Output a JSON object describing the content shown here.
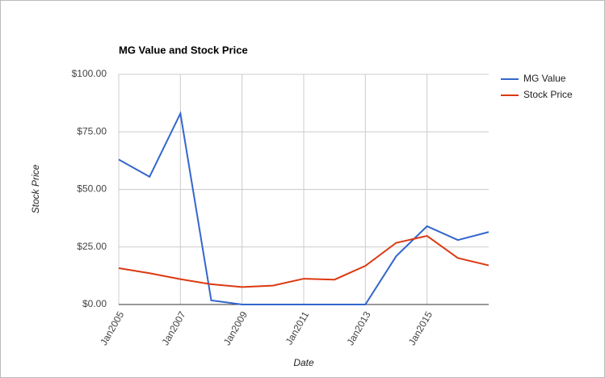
{
  "chart_data": {
    "type": "line",
    "title": "MG Value and Stock Price",
    "x_label": "Date",
    "y_label": "Stock Price",
    "x": [
      "2005-01",
      "2006-01",
      "2007-01",
      "2008-01",
      "2009-01",
      "2010-01",
      "2011-01",
      "2012-01",
      "2013-01",
      "2014-01",
      "2015-01",
      "2016-01",
      "2017-01"
    ],
    "series": [
      {
        "name": "MG Value",
        "color": "#3366cc",
        "values": [
          63,
          55.5,
          83,
          1.8,
          0,
          0,
          0,
          0,
          0,
          21,
          34,
          28,
          31.5
        ]
      },
      {
        "name": "Stock Price",
        "color": "#dc3912",
        "values": [
          15.8,
          13.6,
          11,
          8.8,
          7.6,
          8.2,
          11.2,
          10.8,
          16.8,
          26.8,
          29.8,
          20.2,
          17
        ]
      }
    ],
    "xlim": [
      "2005-01",
      "2017-01"
    ],
    "xticks": [
      {
        "value": "2005-01",
        "label": "Jan2005"
      },
      {
        "value": "2007-01",
        "label": "Jan2007"
      },
      {
        "value": "2009-01",
        "label": "Jan2009"
      },
      {
        "value": "2011-01",
        "label": "Jan2011"
      },
      {
        "value": "2013-01",
        "label": "Jan2013"
      },
      {
        "value": "2015-01",
        "label": "Jan2015"
      }
    ],
    "ylim": [
      0,
      100
    ],
    "yticks": [
      {
        "value": 0,
        "label": "$0.00"
      },
      {
        "value": 25,
        "label": "$25.00"
      },
      {
        "value": 50,
        "label": "$50.00"
      },
      {
        "value": 75,
        "label": "$75.00"
      },
      {
        "value": 100,
        "label": "$100.00"
      }
    ],
    "grid": true,
    "legend": "right"
  }
}
